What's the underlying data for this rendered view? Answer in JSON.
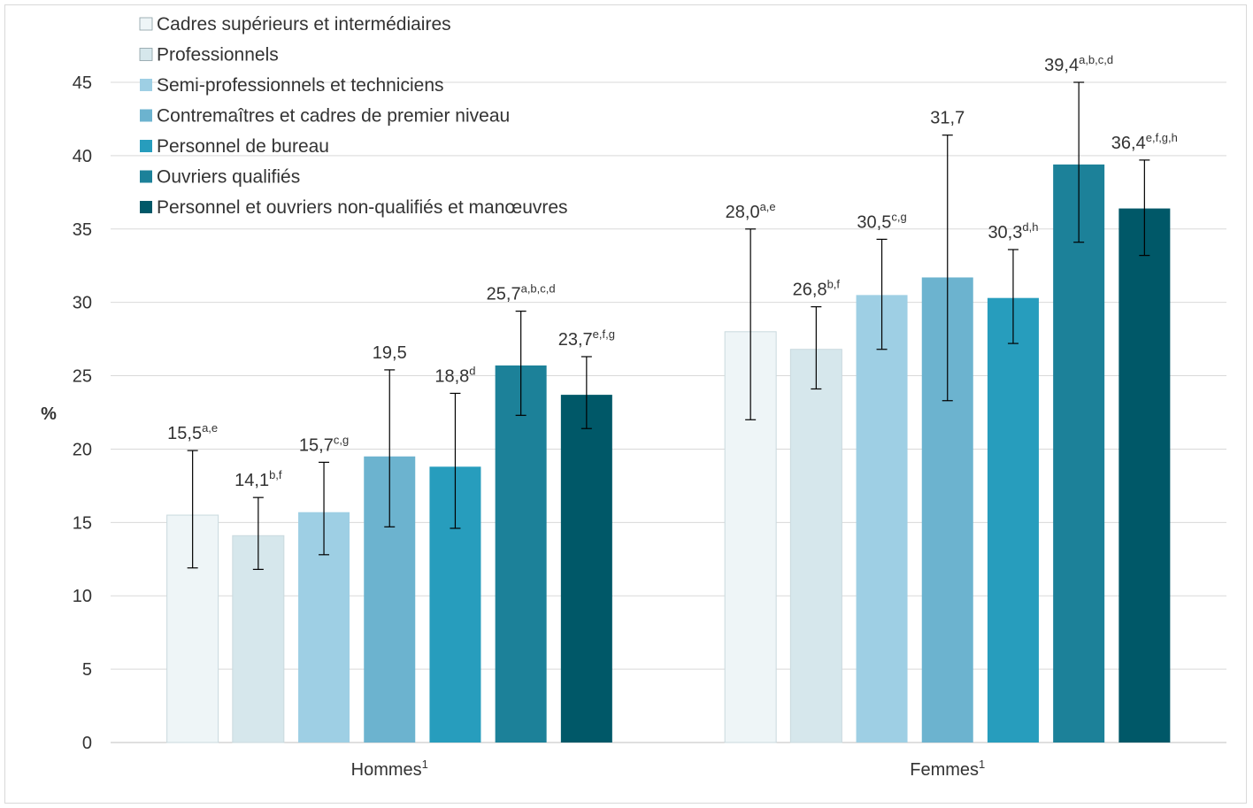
{
  "chart_data": {
    "type": "bar",
    "ylabel": "%",
    "xlabel": "",
    "ylim": [
      0,
      45
    ],
    "yticks": [
      0,
      5,
      10,
      15,
      20,
      25,
      30,
      35,
      40,
      45
    ],
    "grid": true,
    "legend_position": "top-left",
    "categories": [
      {
        "name": "Hommes",
        "sup": "1"
      },
      {
        "name": "Femmes",
        "sup": "1"
      }
    ],
    "series": [
      {
        "name": "Cadres supérieurs et intermédiaires",
        "color": "#eef5f7",
        "values": [
          15.5,
          28.0
        ],
        "err_low": [
          11.9,
          22.0
        ],
        "err_high": [
          19.9,
          35.0
        ],
        "labels": [
          "15,5",
          "28,0"
        ],
        "sups": [
          "a,e",
          "a,e"
        ]
      },
      {
        "name": "Professionnels",
        "color": "#d6e7ec",
        "values": [
          14.1,
          26.8
        ],
        "err_low": [
          11.8,
          24.1
        ],
        "err_high": [
          16.7,
          29.7
        ],
        "labels": [
          "14,1",
          "26,8"
        ],
        "sups": [
          "b,f",
          "b,f"
        ]
      },
      {
        "name": "Semi-professionnels et techniciens",
        "color": "#9ecfe4",
        "values": [
          15.7,
          30.5
        ],
        "err_low": [
          12.8,
          26.8
        ],
        "err_high": [
          19.1,
          34.3
        ],
        "labels": [
          "15,7",
          "30,5"
        ],
        "sups": [
          "c,g",
          "c,g"
        ]
      },
      {
        "name": "Contremaîtres et cadres de premier niveau",
        "color": "#6cb3cf",
        "values": [
          19.5,
          31.7
        ],
        "err_low": [
          14.7,
          23.3
        ],
        "err_high": [
          25.4,
          41.4
        ],
        "labels": [
          "19,5",
          "31,7"
        ],
        "sups": [
          "",
          ""
        ]
      },
      {
        "name": "Personnel de bureau",
        "color": "#279dbd",
        "values": [
          18.8,
          30.3
        ],
        "err_low": [
          14.6,
          27.2
        ],
        "err_high": [
          23.8,
          33.6
        ],
        "labels": [
          "18,8",
          "30,3"
        ],
        "sups": [
          "d",
          "d,h"
        ]
      },
      {
        "name": "Ouvriers qualifiés",
        "color": "#1c8199",
        "values": [
          25.7,
          39.4
        ],
        "err_low": [
          22.3,
          34.1
        ],
        "err_high": [
          29.4,
          45.0
        ],
        "labels": [
          "25,7",
          "39,4"
        ],
        "sups": [
          "a,b,c,d",
          "a,b,c,d"
        ]
      },
      {
        "name": "Personnel et ouvriers non-qualifiés et manœuvres",
        "color": "#005868",
        "values": [
          23.7,
          36.4
        ],
        "err_low": [
          21.4,
          33.2
        ],
        "err_high": [
          26.3,
          39.7
        ],
        "labels": [
          "23,7",
          "36,4"
        ],
        "sups": [
          "e,f,g",
          "e,f,g,h"
        ]
      }
    ]
  }
}
